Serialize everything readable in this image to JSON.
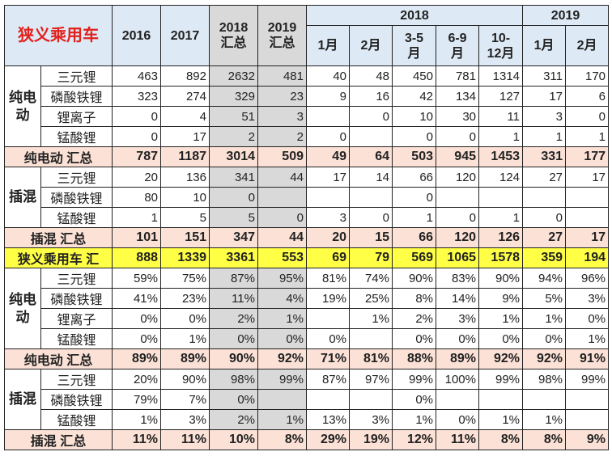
{
  "header": {
    "title": "狭义乘用车",
    "cols": [
      "2016",
      "2017",
      "2018\n汇总",
      "2019\n汇总"
    ],
    "year_2018": "2018",
    "year_2019": "2019",
    "months_2018": [
      "1月",
      "2月",
      "3-5\n月",
      "6-9\n月",
      "10-\n12月"
    ],
    "months_2019": [
      "1月",
      "2月"
    ]
  },
  "colors": {
    "title": "#e3201b",
    "header_bg": "#dde9f5",
    "total_bg": "#fbe1d6",
    "grand_total_bg": "#ffff45",
    "summary_col_bg": "#d9d9d9"
  },
  "sections": [
    {
      "type": "group",
      "group": "纯电动",
      "rows": [
        {
          "label": "三元锂",
          "values": [
            "463",
            "892",
            "2632",
            "481",
            "40",
            "48",
            "450",
            "781",
            "1314",
            "311",
            "170"
          ]
        },
        {
          "label": "磷酸铁锂",
          "values": [
            "323",
            "274",
            "329",
            "23",
            "9",
            "16",
            "42",
            "134",
            "127",
            "17",
            "6"
          ]
        },
        {
          "label": "锂离子",
          "values": [
            "0",
            "4",
            "51",
            "3",
            "",
            "0",
            "10",
            "30",
            "11",
            "3",
            "0"
          ]
        },
        {
          "label": "锰酸锂",
          "values": [
            "0",
            "17",
            "2",
            "2",
            "0",
            "",
            "0",
            "0",
            "1",
            "1",
            "1"
          ]
        }
      ]
    },
    {
      "type": "total",
      "label": "纯电动 汇总",
      "values": [
        "787",
        "1187",
        "3014",
        "509",
        "49",
        "64",
        "503",
        "945",
        "1453",
        "331",
        "177"
      ]
    },
    {
      "type": "group",
      "group": "插混",
      "rows": [
        {
          "label": "三元锂",
          "values": [
            "20",
            "136",
            "341",
            "44",
            "17",
            "14",
            "66",
            "120",
            "124",
            "27",
            "17"
          ]
        },
        {
          "label": "磷酸铁锂",
          "values": [
            "80",
            "10",
            "0",
            "",
            "",
            "",
            "0",
            "",
            "",
            "",
            ""
          ]
        },
        {
          "label": "锰酸锂",
          "values": [
            "1",
            "5",
            "5",
            "0",
            "3",
            "0",
            "1",
            "0",
            "1",
            "0",
            ""
          ]
        }
      ]
    },
    {
      "type": "total",
      "label": "插混 汇总",
      "values": [
        "101",
        "151",
        "347",
        "44",
        "20",
        "15",
        "66",
        "120",
        "126",
        "27",
        "17"
      ]
    },
    {
      "type": "grand",
      "label": "狭义乘用车 汇",
      "values": [
        "888",
        "1339",
        "3361",
        "553",
        "69",
        "79",
        "569",
        "1065",
        "1578",
        "359",
        "194"
      ]
    },
    {
      "type": "group",
      "group": "纯电动",
      "rows": [
        {
          "label": "三元锂",
          "values": [
            "59%",
            "75%",
            "87%",
            "95%",
            "81%",
            "74%",
            "90%",
            "83%",
            "90%",
            "94%",
            "96%"
          ]
        },
        {
          "label": "磷酸铁锂",
          "values": [
            "41%",
            "23%",
            "11%",
            "4%",
            "19%",
            "25%",
            "8%",
            "14%",
            "9%",
            "5%",
            "3%"
          ]
        },
        {
          "label": "锂离子",
          "values": [
            "0%",
            "0%",
            "2%",
            "1%",
            "",
            "1%",
            "2%",
            "3%",
            "1%",
            "1%",
            "0%"
          ]
        },
        {
          "label": "锰酸锂",
          "values": [
            "0%",
            "1%",
            "0%",
            "0%",
            "0%",
            "",
            "0%",
            "0%",
            "0%",
            "0%",
            "1%"
          ]
        }
      ]
    },
    {
      "type": "total",
      "label": "纯电动 汇总",
      "values": [
        "89%",
        "89%",
        "90%",
        "92%",
        "71%",
        "81%",
        "88%",
        "89%",
        "92%",
        "92%",
        "91%"
      ]
    },
    {
      "type": "group",
      "group": "插混",
      "rows": [
        {
          "label": "三元锂",
          "values": [
            "20%",
            "90%",
            "98%",
            "99%",
            "87%",
            "97%",
            "99%",
            "100%",
            "99%",
            "98%",
            "99%"
          ]
        },
        {
          "label": "磷酸铁锂",
          "values": [
            "79%",
            "7%",
            "0%",
            "",
            "",
            "",
            "0%",
            "",
            "",
            "",
            ""
          ]
        },
        {
          "label": "锰酸锂",
          "values": [
            "1%",
            "3%",
            "2%",
            "1%",
            "13%",
            "3%",
            "1%",
            "0%",
            "1%",
            "1%",
            ""
          ]
        }
      ]
    },
    {
      "type": "total",
      "label": "插混 汇总",
      "values": [
        "11%",
        "11%",
        "10%",
        "8%",
        "29%",
        "19%",
        "12%",
        "11%",
        "8%",
        "8%",
        "9%"
      ]
    }
  ]
}
